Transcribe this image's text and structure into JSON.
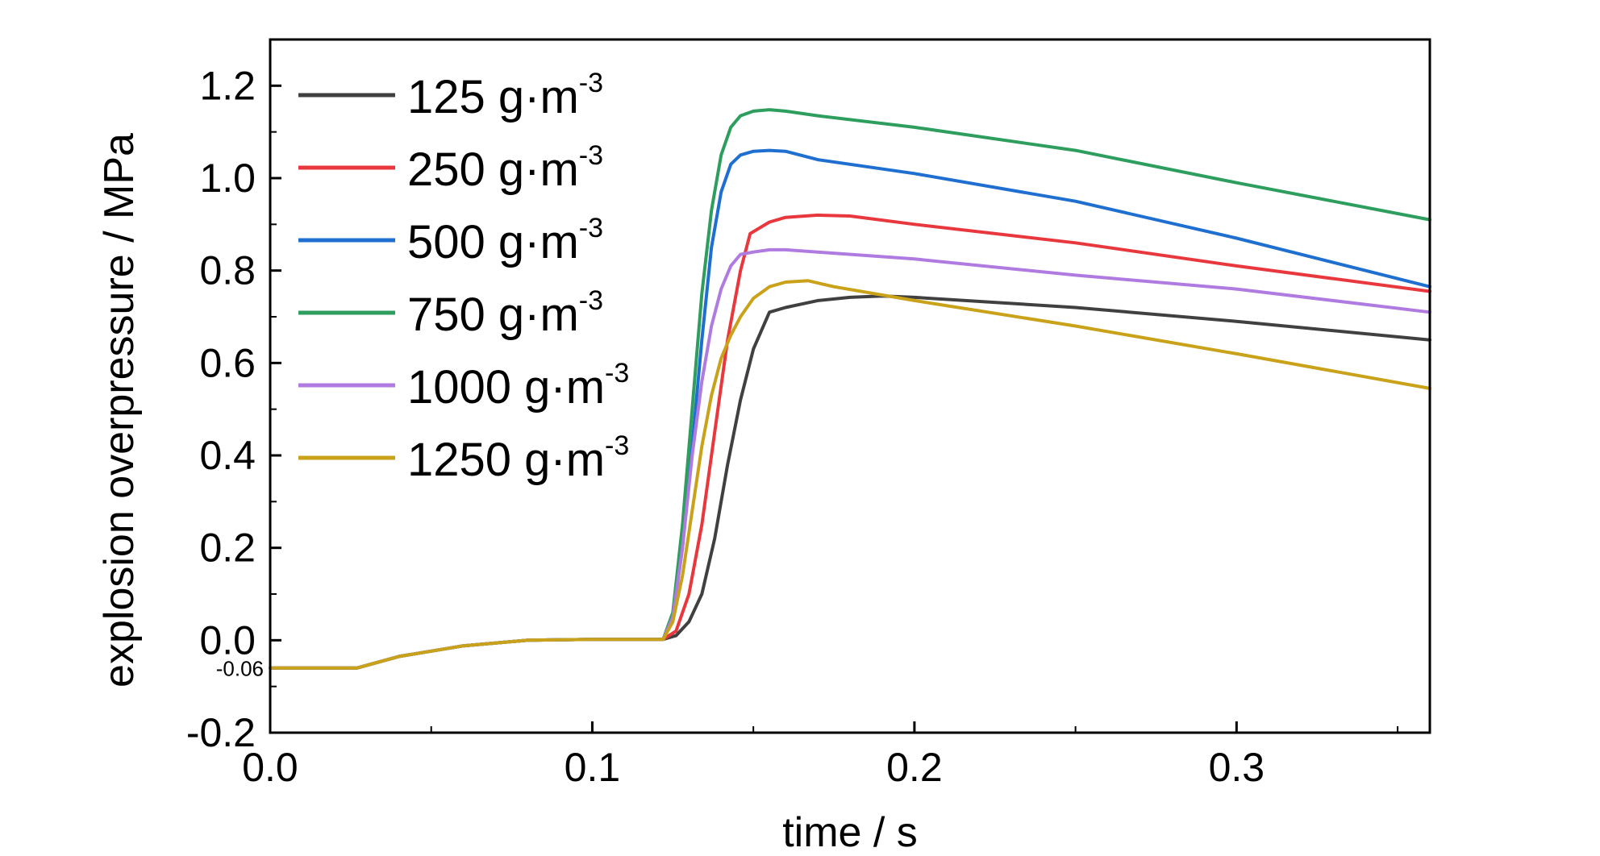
{
  "chart_data": {
    "type": "line",
    "title": "",
    "xlabel": "time / s",
    "ylabel": "explosion overpressure / MPa",
    "xlim": [
      0.0,
      0.36
    ],
    "ylim": [
      -0.2,
      1.3
    ],
    "x_ticks": [
      {
        "value": 0.0,
        "label": "0.0"
      },
      {
        "value": 0.1,
        "label": "0.1"
      },
      {
        "value": 0.2,
        "label": "0.2"
      },
      {
        "value": 0.3,
        "label": "0.3"
      }
    ],
    "y_ticks": [
      {
        "value": -0.2,
        "label": "-0.2"
      },
      {
        "value": 0.0,
        "label": "0.0"
      },
      {
        "value": 0.2,
        "label": "0.2"
      },
      {
        "value": 0.4,
        "label": "0.4"
      },
      {
        "value": 0.6,
        "label": "0.6"
      },
      {
        "value": 0.8,
        "label": "0.8"
      },
      {
        "value": 1.0,
        "label": "1.0"
      },
      {
        "value": 1.2,
        "label": "1.2"
      }
    ],
    "annotations": [
      {
        "text": "-0.06",
        "x": 0.0,
        "y": -0.06
      }
    ],
    "grid": false,
    "legend_position": "top-left",
    "series": [
      {
        "name": "125 g·m",
        "superscript": "-3",
        "color": "#404040",
        "x": [
          0,
          0.027,
          0.04,
          0.06,
          0.08,
          0.1,
          0.122,
          0.126,
          0.13,
          0.134,
          0.138,
          0.142,
          0.146,
          0.15,
          0.155,
          0.16,
          0.17,
          0.18,
          0.19,
          0.2,
          0.25,
          0.3,
          0.36
        ],
        "y": [
          -0.06,
          -0.06,
          -0.035,
          -0.012,
          0.0,
          0.002,
          0.002,
          0.01,
          0.04,
          0.1,
          0.22,
          0.38,
          0.52,
          0.63,
          0.71,
          0.72,
          0.735,
          0.742,
          0.745,
          0.742,
          0.72,
          0.69,
          0.65
        ]
      },
      {
        "name": "250 g·m",
        "superscript": "-3",
        "color": "#e8383d",
        "x": [
          0,
          0.027,
          0.04,
          0.06,
          0.08,
          0.1,
          0.122,
          0.126,
          0.13,
          0.134,
          0.138,
          0.142,
          0.146,
          0.149,
          0.155,
          0.16,
          0.17,
          0.18,
          0.2,
          0.25,
          0.3,
          0.36
        ],
        "y": [
          -0.06,
          -0.06,
          -0.035,
          -0.012,
          0.0,
          0.002,
          0.002,
          0.02,
          0.1,
          0.25,
          0.45,
          0.65,
          0.8,
          0.88,
          0.905,
          0.915,
          0.92,
          0.918,
          0.9,
          0.86,
          0.81,
          0.755
        ]
      },
      {
        "name": "500 g·m",
        "superscript": "-3",
        "color": "#1f6fd1",
        "x": [
          0,
          0.027,
          0.04,
          0.06,
          0.08,
          0.1,
          0.122,
          0.125,
          0.128,
          0.131,
          0.134,
          0.137,
          0.14,
          0.143,
          0.146,
          0.15,
          0.155,
          0.16,
          0.17,
          0.2,
          0.25,
          0.3,
          0.36
        ],
        "y": [
          -0.06,
          -0.06,
          -0.035,
          -0.012,
          0.0,
          0.002,
          0.002,
          0.05,
          0.2,
          0.42,
          0.65,
          0.85,
          0.97,
          1.03,
          1.05,
          1.058,
          1.06,
          1.058,
          1.04,
          1.01,
          0.95,
          0.87,
          0.765
        ]
      },
      {
        "name": "750 g·m",
        "superscript": "-3",
        "color": "#2e9e5e",
        "x": [
          0,
          0.027,
          0.04,
          0.06,
          0.08,
          0.1,
          0.122,
          0.125,
          0.128,
          0.131,
          0.134,
          0.137,
          0.14,
          0.143,
          0.146,
          0.15,
          0.155,
          0.16,
          0.17,
          0.2,
          0.25,
          0.3,
          0.36
        ],
        "y": [
          -0.06,
          -0.06,
          -0.035,
          -0.012,
          0.0,
          0.002,
          0.002,
          0.06,
          0.25,
          0.5,
          0.75,
          0.93,
          1.05,
          1.11,
          1.135,
          1.145,
          1.148,
          1.145,
          1.135,
          1.11,
          1.06,
          0.99,
          0.91
        ]
      },
      {
        "name": "1000 g·m",
        "superscript": "-3",
        "color": "#b07be0",
        "x": [
          0,
          0.027,
          0.04,
          0.06,
          0.08,
          0.1,
          0.122,
          0.125,
          0.128,
          0.131,
          0.134,
          0.137,
          0.14,
          0.143,
          0.146,
          0.15,
          0.155,
          0.16,
          0.17,
          0.2,
          0.25,
          0.3,
          0.36
        ],
        "y": [
          -0.06,
          -0.06,
          -0.035,
          -0.012,
          0.0,
          0.002,
          0.002,
          0.05,
          0.2,
          0.4,
          0.56,
          0.68,
          0.76,
          0.81,
          0.835,
          0.84,
          0.845,
          0.845,
          0.84,
          0.825,
          0.79,
          0.76,
          0.71
        ]
      },
      {
        "name": "1250 g·m",
        "superscript": "-3",
        "color": "#c9a21a",
        "x": [
          0,
          0.027,
          0.04,
          0.06,
          0.08,
          0.1,
          0.122,
          0.125,
          0.128,
          0.131,
          0.134,
          0.137,
          0.14,
          0.143,
          0.146,
          0.15,
          0.155,
          0.16,
          0.167,
          0.175,
          0.2,
          0.25,
          0.3,
          0.36
        ],
        "y": [
          -0.06,
          -0.06,
          -0.035,
          -0.012,
          0.0,
          0.002,
          0.002,
          0.04,
          0.14,
          0.28,
          0.42,
          0.53,
          0.61,
          0.66,
          0.7,
          0.74,
          0.765,
          0.775,
          0.778,
          0.765,
          0.735,
          0.68,
          0.62,
          0.545
        ]
      }
    ]
  }
}
